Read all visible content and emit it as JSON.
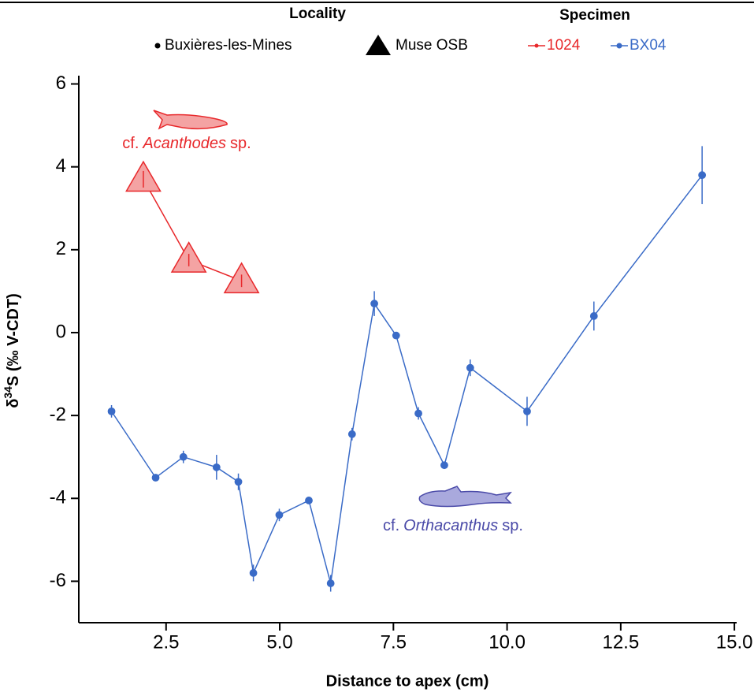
{
  "chart_data": {
    "type": "line",
    "xlabel": "Distance to apex (cm)",
    "ylabel": {
      "main": "δ",
      "sup": "34",
      "rest": "S (‰ V-CDT)"
    },
    "xlim": [
      0.58,
      15.05
    ],
    "ylim": [
      -7,
      6.2
    ],
    "xticks": [
      {
        "value": 2.5,
        "label": "2.5"
      },
      {
        "value": 5,
        "label": "5.0"
      },
      {
        "value": 7.5,
        "label": "7.5"
      },
      {
        "value": 10,
        "label": "10.0"
      },
      {
        "value": 12.5,
        "label": "12.5"
      },
      {
        "value": 15,
        "label": "15.0"
      }
    ],
    "yticks": [
      -6,
      -4,
      -2,
      0,
      2,
      4,
      6
    ],
    "legend_titles": [
      "Locality",
      "Specimen"
    ],
    "localities": [
      {
        "name": "Buxières-les-Mines",
        "marker": "circle"
      },
      {
        "name": "Muse OSB",
        "marker": "triangle"
      }
    ],
    "series": [
      {
        "name": "1024",
        "color": "#e8282b",
        "fill": "#f4a3a3",
        "marker": "triangle",
        "x": [
          2.0,
          3.0,
          4.16
        ],
        "values": [
          3.7,
          1.75,
          1.25
        ],
        "errors": [
          0.2,
          0.15,
          0.15
        ]
      },
      {
        "name": "BX04",
        "color": "#3a6bc7",
        "fill": "#3a6bc7",
        "marker": "circle",
        "x": [
          1.3,
          2.27,
          2.88,
          3.61,
          4.09,
          4.42,
          4.99,
          5.64,
          6.12,
          6.59,
          7.08,
          7.56,
          8.05,
          8.62,
          9.19,
          10.44,
          11.91,
          14.29
        ],
        "values": [
          -1.9,
          -3.5,
          -3.0,
          -3.25,
          -3.6,
          -5.8,
          -4.4,
          -4.05,
          -6.05,
          -2.45,
          0.7,
          -0.07,
          -1.95,
          -3.2,
          -0.85,
          -1.9,
          0.4,
          3.8
        ],
        "errors": [
          0.15,
          0.05,
          0.15,
          0.3,
          0.2,
          0.2,
          0.15,
          0.05,
          0.2,
          0.15,
          0.3,
          0.05,
          0.15,
          0.05,
          0.2,
          0.35,
          0.35,
          0.7
        ]
      }
    ],
    "annotations": [
      {
        "prefix": "cf.",
        "genus": "Acanthodes",
        "suffix": "sp.",
        "color": "#e8282b"
      },
      {
        "prefix": "cf.",
        "genus": "Orthacanthus",
        "suffix": "sp.",
        "color": "#4a4aa8"
      }
    ]
  }
}
